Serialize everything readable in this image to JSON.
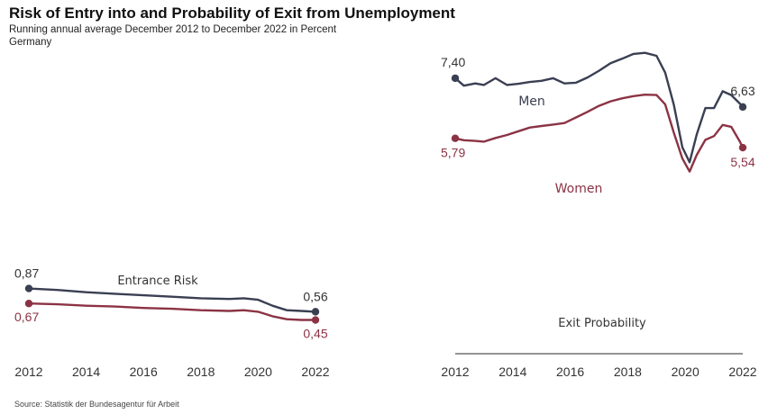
{
  "header": {
    "title": "Risk of Entry into and Probability of Exit from Unemployment",
    "subtitle": "Running annual average December 2012 to December 2022 in Percent",
    "region": "Germany"
  },
  "footer": {
    "source": "Source: Statistik der Bundesagentur für Arbeit"
  },
  "colors": {
    "men": "#3a3f52",
    "women": "#8b3344",
    "axis": "#555555"
  },
  "chart_data": [
    {
      "type": "line",
      "title": "Entrance Risk",
      "xlim": [
        2012,
        2022
      ],
      "ylim": [
        0,
        4
      ],
      "x_ticks": [
        "2012",
        "2014",
        "2016",
        "2018",
        "2020",
        "2022"
      ],
      "series": [
        {
          "key": "men",
          "x": [
            2012,
            2013,
            2014,
            2015,
            2016,
            2017,
            2018,
            2019,
            2019.5,
            2020,
            2020.5,
            2021,
            2021.5,
            2022
          ],
          "y": [
            0.87,
            0.85,
            0.82,
            0.8,
            0.78,
            0.76,
            0.74,
            0.73,
            0.74,
            0.72,
            0.64,
            0.58,
            0.57,
            0.56
          ],
          "start_label": "0,87",
          "end_label": "0,56"
        },
        {
          "key": "women",
          "x": [
            2012,
            2013,
            2014,
            2015,
            2016,
            2017,
            2018,
            2019,
            2019.5,
            2020,
            2020.5,
            2021,
            2021.5,
            2022
          ],
          "y": [
            0.67,
            0.66,
            0.64,
            0.63,
            0.61,
            0.6,
            0.58,
            0.57,
            0.58,
            0.56,
            0.5,
            0.46,
            0.45,
            0.45
          ],
          "start_label": "0,67",
          "end_label": "0,45"
        }
      ]
    },
    {
      "type": "line",
      "title": "Exit Probability",
      "xlim": [
        2012,
        2022
      ],
      "ylim": [
        0,
        8
      ],
      "x_ticks": [
        "2012",
        "2014",
        "2016",
        "2018",
        "2020",
        "2022"
      ],
      "series": [
        {
          "key": "men",
          "name": "Men",
          "x": [
            2012,
            2012.3,
            2012.7,
            2013,
            2013.4,
            2013.8,
            2014.2,
            2014.6,
            2015,
            2015.4,
            2015.8,
            2016.2,
            2016.6,
            2017,
            2017.4,
            2017.8,
            2018.2,
            2018.6,
            2019,
            2019.3,
            2019.6,
            2019.9,
            2020.15,
            2020.4,
            2020.7,
            2021,
            2021.3,
            2021.6,
            2021.9,
            2022
          ],
          "y": [
            7.4,
            7.2,
            7.26,
            7.22,
            7.4,
            7.22,
            7.25,
            7.3,
            7.33,
            7.4,
            7.26,
            7.28,
            7.42,
            7.6,
            7.8,
            7.92,
            8.05,
            8.08,
            8.0,
            7.55,
            6.7,
            5.55,
            5.15,
            5.9,
            6.6,
            6.6,
            7.05,
            6.95,
            6.72,
            6.63
          ],
          "start_label": "7,40",
          "end_label": "6,63"
        },
        {
          "key": "women",
          "name": "Women",
          "x": [
            2012,
            2012.3,
            2012.7,
            2013,
            2013.4,
            2013.8,
            2014.2,
            2014.6,
            2015,
            2015.4,
            2015.8,
            2016.2,
            2016.6,
            2017,
            2017.4,
            2017.8,
            2018.2,
            2018.6,
            2019,
            2019.3,
            2019.6,
            2019.9,
            2020.15,
            2020.4,
            2020.7,
            2021,
            2021.3,
            2021.6,
            2021.9,
            2022
          ],
          "y": [
            5.79,
            5.74,
            5.72,
            5.7,
            5.8,
            5.88,
            5.98,
            6.08,
            6.12,
            6.16,
            6.2,
            6.35,
            6.5,
            6.66,
            6.78,
            6.86,
            6.92,
            6.96,
            6.95,
            6.7,
            5.95,
            5.25,
            4.9,
            5.35,
            5.75,
            5.85,
            6.15,
            6.1,
            5.7,
            5.54
          ],
          "start_label": "5,79",
          "end_label": "5,54"
        }
      ]
    }
  ]
}
